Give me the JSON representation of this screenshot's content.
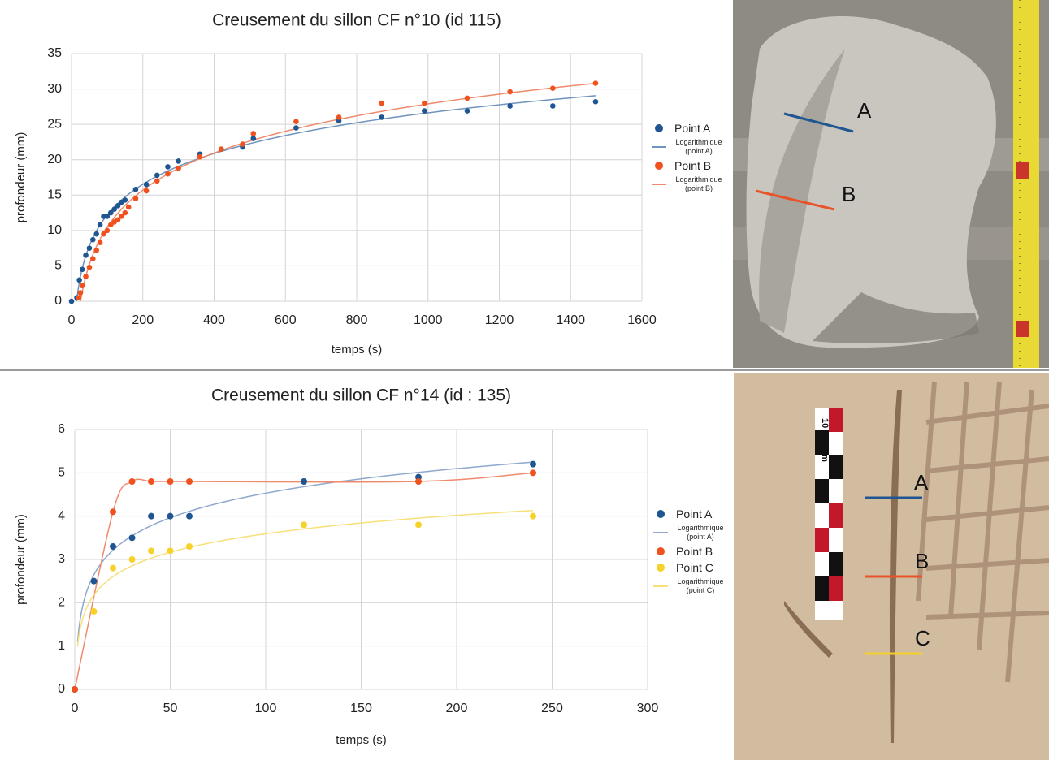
{
  "chart_data": [
    {
      "type": "scatter",
      "title": "Creusement du sillon CF n°10 (id 115)",
      "x_label": "temps (s)",
      "y_label": "profondeur (mm)",
      "xlim": [
        0,
        1600
      ],
      "xticks": [
        0,
        200,
        400,
        600,
        800,
        1000,
        1200,
        1400,
        1600
      ],
      "ylim": [
        0,
        35
      ],
      "yticks": [
        0,
        5,
        10,
        15,
        20,
        25,
        30,
        35
      ],
      "grid": true,
      "series": [
        {
          "name": "Point A",
          "color": "#1f5591",
          "x": [
            0,
            15,
            22,
            30,
            40,
            50,
            60,
            70,
            80,
            90,
            100,
            110,
            120,
            130,
            140,
            150,
            180,
            210,
            240,
            270,
            300,
            360,
            420,
            480,
            510,
            630,
            750,
            870,
            990,
            1110,
            1230,
            1350,
            1470
          ],
          "values": [
            0,
            0.5,
            3,
            4.5,
            6.5,
            7.5,
            8.7,
            9.5,
            10.8,
            12,
            12,
            12.5,
            13,
            13.5,
            14,
            14.3,
            15.8,
            16.5,
            17.8,
            19,
            19.8,
            20.8,
            21.5,
            21.8,
            23,
            24.5,
            25.5,
            26,
            26.9,
            26.9,
            27.6,
            27.6,
            28.2
          ],
          "trendline": {
            "type": "logarithmic",
            "name": "Logarithmique (point A)",
            "color": "#6f93bd"
          }
        },
        {
          "name": "Point B",
          "color": "#f0521f",
          "x": [
            20,
            25,
            30,
            40,
            50,
            60,
            70,
            80,
            90,
            100,
            110,
            120,
            130,
            140,
            150,
            160,
            180,
            210,
            240,
            270,
            300,
            360,
            420,
            480,
            510,
            630,
            750,
            870,
            990,
            1110,
            1230,
            1350,
            1470
          ],
          "values": [
            0.5,
            1.2,
            2.2,
            3.5,
            4.8,
            6,
            7.2,
            8.3,
            9.5,
            10,
            10.8,
            11.2,
            11.5,
            12,
            12.5,
            13.3,
            14.5,
            15.6,
            17,
            18,
            18.8,
            20.4,
            21.5,
            22.2,
            23.7,
            25.4,
            26,
            28,
            28,
            28.7,
            29.6,
            30.1,
            30.8
          ],
          "trendline": {
            "type": "logarithmic",
            "name": "Logarithmique (point B)",
            "color": "#f08a6c"
          }
        }
      ]
    },
    {
      "type": "scatter",
      "title": "Creusement du sillon CF n°14 (id : 135)",
      "x_label": "temps (s)",
      "y_label": "profondeur (mm)",
      "xlim": [
        0,
        300
      ],
      "xticks": [
        0,
        50,
        100,
        150,
        200,
        250,
        300
      ],
      "ylim": [
        0,
        6
      ],
      "yticks": [
        0,
        1,
        2,
        3,
        4,
        5,
        6
      ],
      "grid": true,
      "series": [
        {
          "name": "Point A",
          "color": "#1f5591",
          "x": [
            0,
            10,
            20,
            30,
            40,
            50,
            60,
            120,
            180,
            240
          ],
          "values": [
            0,
            2.5,
            3.3,
            3.5,
            4,
            4,
            4,
            4.8,
            4.9,
            5.2
          ],
          "trendline": {
            "type": "logarithmic",
            "name": "Logarithmique (point A)",
            "color": "#8fa8cc"
          }
        },
        {
          "name": "Point B",
          "color": "#f0521f",
          "x": [
            0,
            20,
            30,
            40,
            50,
            60,
            180,
            240
          ],
          "values": [
            0,
            4.1,
            4.8,
            4.8,
            4.8,
            4.8,
            4.8,
            5
          ],
          "line": {
            "type": "smooth",
            "color": "#f08a6c"
          }
        },
        {
          "name": "Point C",
          "color": "#f7d22a",
          "x": [
            10,
            20,
            30,
            40,
            50,
            60,
            120,
            180,
            240
          ],
          "values": [
            1.8,
            2.8,
            3,
            3.2,
            3.2,
            3.3,
            3.8,
            3.8,
            4
          ],
          "trendline": {
            "type": "logarithmic",
            "name": "Logarithmique (point C)",
            "color": "#f7e07a"
          }
        }
      ]
    }
  ],
  "photos": [
    {
      "labels": [
        "A",
        "B"
      ]
    },
    {
      "labels": [
        "A",
        "B",
        "C"
      ],
      "scale": [
        "10",
        "cm"
      ]
    }
  ]
}
